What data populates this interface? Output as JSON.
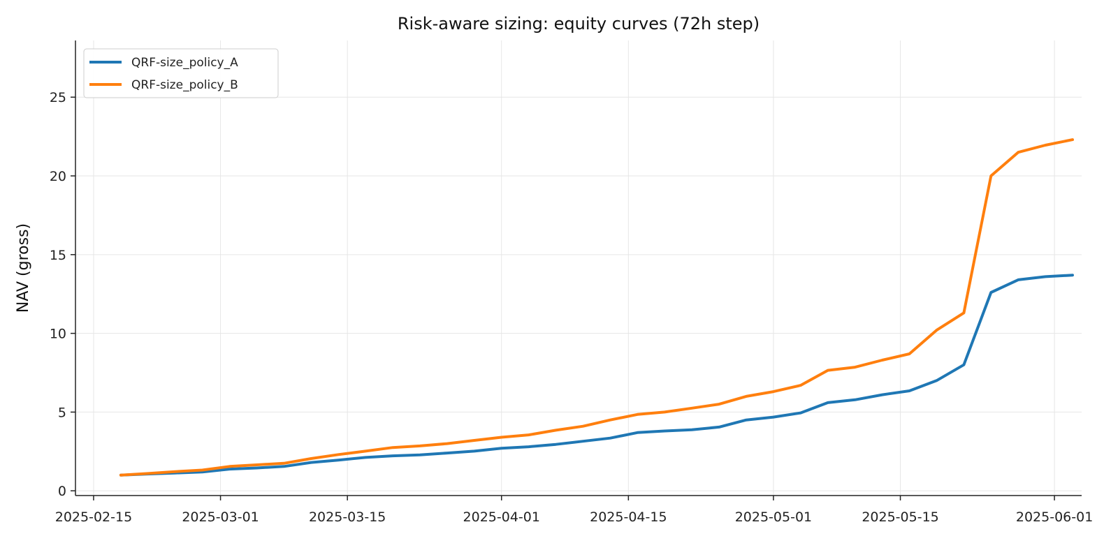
{
  "chart_data": {
    "type": "line",
    "title": "Risk-aware sizing: equity curves (72h step)",
    "xlabel": "",
    "ylabel": "NAV (gross)",
    "x_axis_type": "date",
    "xlim": [
      "2025-02-13",
      "2025-06-04"
    ],
    "ylim": [
      -0.3,
      28.6
    ],
    "x_ticks": [
      "2025-02-15",
      "2025-03-01",
      "2025-03-15",
      "2025-04-01",
      "2025-04-15",
      "2025-05-01",
      "2025-05-15",
      "2025-06-01"
    ],
    "y_ticks": [
      0,
      5,
      10,
      15,
      20,
      25
    ],
    "grid": true,
    "legend_position": "top-left",
    "series": [
      {
        "name": "QRF-size_policy_A",
        "color": "#1f77b4",
        "points": [
          [
            "2025-02-18",
            1.0
          ],
          [
            "2025-02-21",
            1.07
          ],
          [
            "2025-02-24",
            1.13
          ],
          [
            "2025-02-27",
            1.2
          ],
          [
            "2025-03-02",
            1.38
          ],
          [
            "2025-03-05",
            1.45
          ],
          [
            "2025-03-08",
            1.55
          ],
          [
            "2025-03-11",
            1.8
          ],
          [
            "2025-03-14",
            1.95
          ],
          [
            "2025-03-17",
            2.12
          ],
          [
            "2025-03-20",
            2.22
          ],
          [
            "2025-03-23",
            2.28
          ],
          [
            "2025-03-26",
            2.4
          ],
          [
            "2025-03-29",
            2.52
          ],
          [
            "2025-04-01",
            2.7
          ],
          [
            "2025-04-04",
            2.8
          ],
          [
            "2025-04-07",
            2.95
          ],
          [
            "2025-04-10",
            3.15
          ],
          [
            "2025-04-13",
            3.35
          ],
          [
            "2025-04-16",
            3.7
          ],
          [
            "2025-04-19",
            3.8
          ],
          [
            "2025-04-22",
            3.88
          ],
          [
            "2025-04-25",
            4.05
          ],
          [
            "2025-04-28",
            4.5
          ],
          [
            "2025-05-01",
            4.68
          ],
          [
            "2025-05-04",
            4.95
          ],
          [
            "2025-05-07",
            5.6
          ],
          [
            "2025-05-10",
            5.78
          ],
          [
            "2025-05-13",
            6.1
          ],
          [
            "2025-05-16",
            6.35
          ],
          [
            "2025-05-19",
            7.0
          ],
          [
            "2025-05-22",
            8.0
          ],
          [
            "2025-05-25",
            12.6
          ],
          [
            "2025-05-28",
            13.4
          ],
          [
            "2025-05-31",
            13.6
          ],
          [
            "2025-06-03",
            13.7
          ]
        ]
      },
      {
        "name": "QRF-size_policy_B",
        "color": "#ff7f0e",
        "points": [
          [
            "2025-02-18",
            1.0
          ],
          [
            "2025-02-21",
            1.1
          ],
          [
            "2025-02-24",
            1.22
          ],
          [
            "2025-02-27",
            1.32
          ],
          [
            "2025-03-02",
            1.55
          ],
          [
            "2025-03-05",
            1.65
          ],
          [
            "2025-03-08",
            1.75
          ],
          [
            "2025-03-11",
            2.05
          ],
          [
            "2025-03-14",
            2.3
          ],
          [
            "2025-03-17",
            2.52
          ],
          [
            "2025-03-20",
            2.75
          ],
          [
            "2025-03-23",
            2.85
          ],
          [
            "2025-03-26",
            3.0
          ],
          [
            "2025-03-29",
            3.2
          ],
          [
            "2025-04-01",
            3.4
          ],
          [
            "2025-04-04",
            3.55
          ],
          [
            "2025-04-07",
            3.85
          ],
          [
            "2025-04-10",
            4.1
          ],
          [
            "2025-04-13",
            4.5
          ],
          [
            "2025-04-16",
            4.85
          ],
          [
            "2025-04-19",
            5.0
          ],
          [
            "2025-04-22",
            5.25
          ],
          [
            "2025-04-25",
            5.5
          ],
          [
            "2025-04-28",
            6.0
          ],
          [
            "2025-05-01",
            6.3
          ],
          [
            "2025-05-04",
            6.7
          ],
          [
            "2025-05-07",
            7.65
          ],
          [
            "2025-05-10",
            7.85
          ],
          [
            "2025-05-13",
            8.3
          ],
          [
            "2025-05-16",
            8.7
          ],
          [
            "2025-05-19",
            10.2
          ],
          [
            "2025-05-22",
            11.3
          ],
          [
            "2025-05-25",
            20.0
          ],
          [
            "2025-05-28",
            21.5
          ],
          [
            "2025-05-31",
            21.95
          ],
          [
            "2025-06-03",
            22.3
          ]
        ]
      }
    ]
  }
}
